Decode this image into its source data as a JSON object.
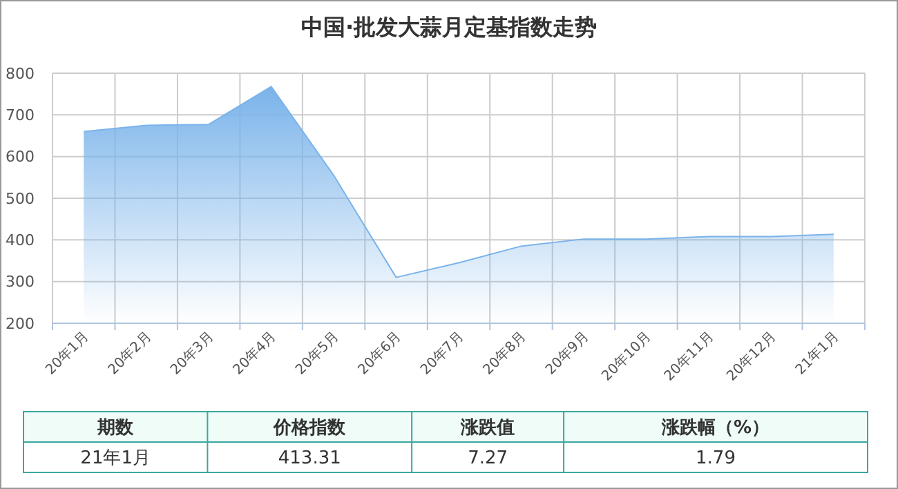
{
  "chart_data": {
    "type": "area",
    "title": "中国·批发大蒜月定基指数走势",
    "categories": [
      "20年1月",
      "20年2月",
      "20年3月",
      "20年4月",
      "20年5月",
      "20年6月",
      "20年7月",
      "20年8月",
      "20年9月",
      "20年10月",
      "20年11月",
      "20年12月",
      "21年1月"
    ],
    "series": [
      {
        "color": "#7ab3ea",
        "values": [
          660,
          675,
          677,
          768,
          555,
          310,
          345,
          385,
          402,
          402,
          408,
          408,
          413.31
        ]
      }
    ],
    "ylim": [
      200,
      800
    ],
    "yticks": [
      200,
      300,
      400,
      500,
      600,
      700,
      800
    ],
    "grid": true,
    "annotations": [
      "期数",
      "价格指数",
      "涨跌值",
      "涨跌幅（%）",
      "21年1月",
      "413.31",
      "7.27",
      "1.79"
    ]
  }
}
